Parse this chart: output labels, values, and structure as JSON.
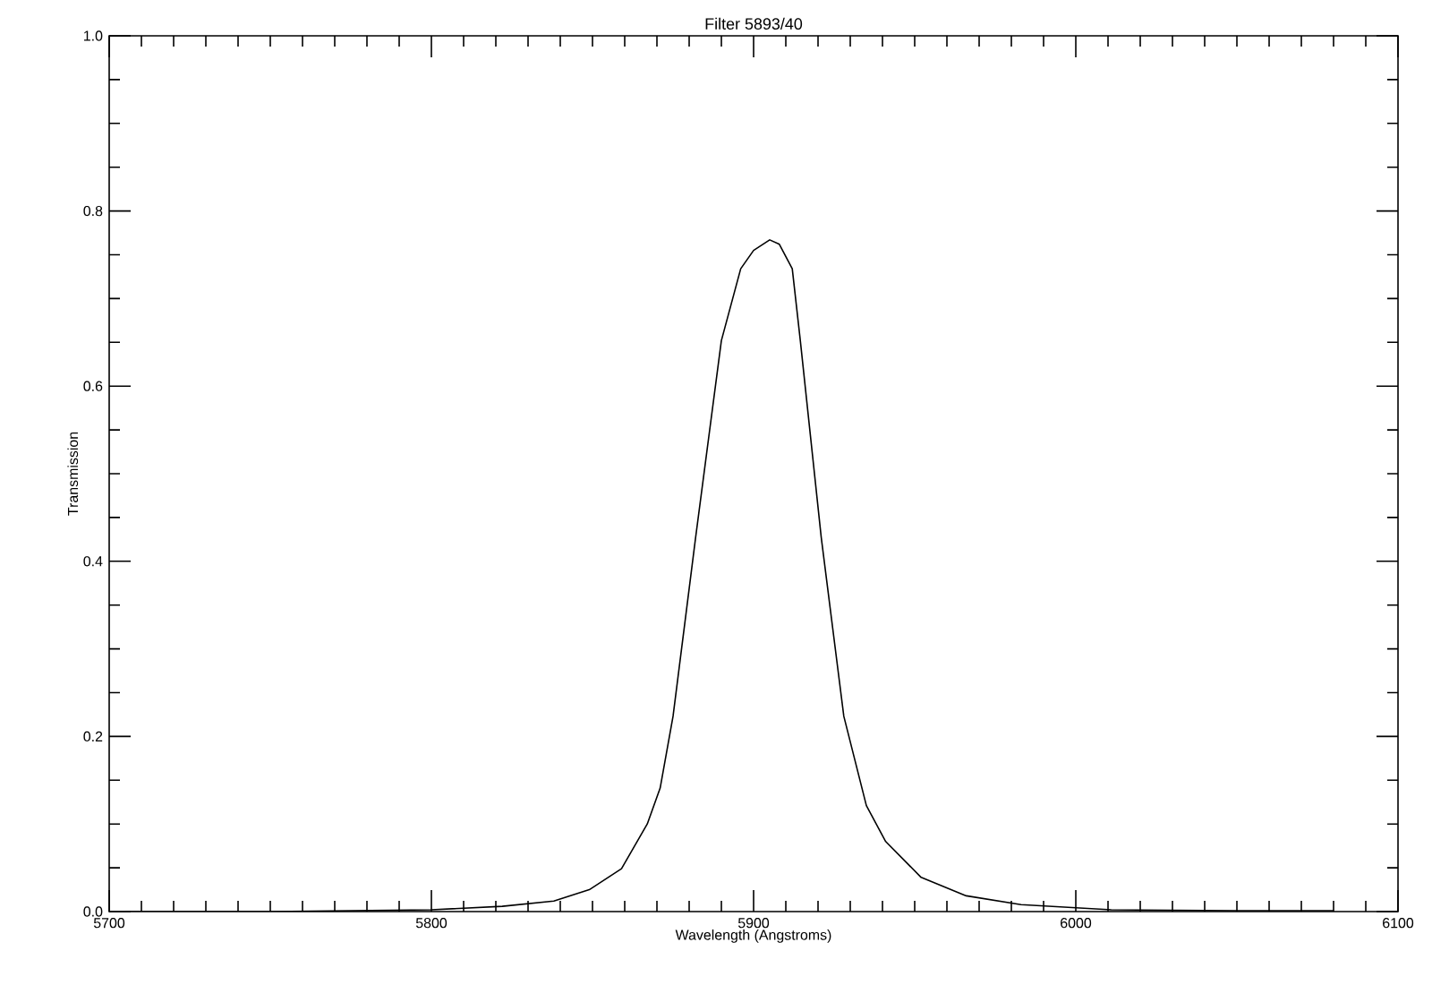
{
  "chart_data": {
    "type": "line",
    "title": "Filter 5893/40",
    "xlabel": "Wavelength (Angstroms)",
    "ylabel": "Transmission",
    "x": [
      5705,
      5750,
      5800,
      5822,
      5838,
      5849,
      5859,
      5867,
      5871,
      5875,
      5882,
      5890,
      5896,
      5900,
      5905,
      5908,
      5912,
      5914.5,
      5921,
      5928,
      5935,
      5941,
      5952,
      5966,
      5983,
      6011,
      6050,
      6080
    ],
    "values": [
      0.0,
      0.0,
      0.002,
      0.006,
      0.012,
      0.025,
      0.049,
      0.1,
      0.141,
      0.223,
      0.427,
      0.652,
      0.734,
      0.755,
      0.767,
      0.762,
      0.734,
      0.652,
      0.427,
      0.223,
      0.121,
      0.08,
      0.039,
      0.018,
      0.008,
      0.002,
      0.001,
      0.001
    ],
    "color": "#000000",
    "line_style": "solid",
    "xlim": [
      5700,
      6100
    ],
    "ylim": [
      0,
      1
    ],
    "xticks": [
      5700,
      5800,
      5900,
      6000,
      6100
    ],
    "yticks": [
      {
        "value": 0,
        "label": "0.0"
      },
      {
        "value": 0.2,
        "label": "0.2"
      },
      {
        "value": 0.4,
        "label": "0.4"
      },
      {
        "value": 0.6,
        "label": "0.6"
      },
      {
        "value": 0.8,
        "label": "0.8"
      },
      {
        "value": 1,
        "label": "1.0"
      }
    ]
  }
}
